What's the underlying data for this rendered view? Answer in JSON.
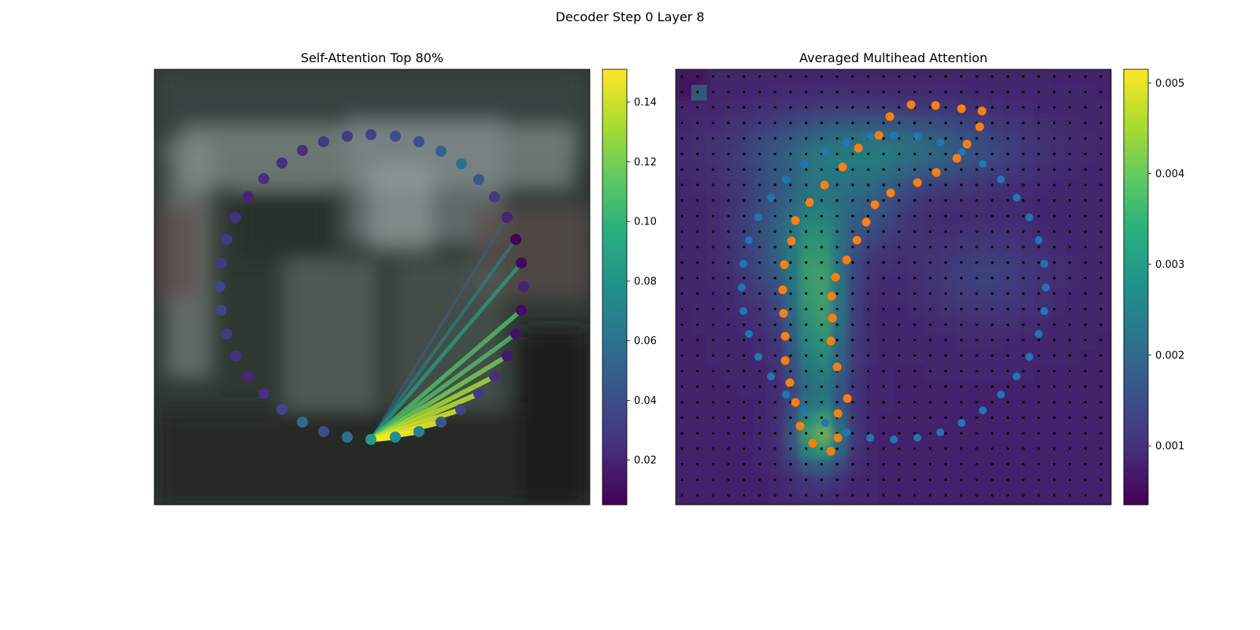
{
  "figure": {
    "title": "Decoder Step 0 Layer 8"
  },
  "chart_data": [
    {
      "type": "scatter",
      "title": "Self-Attention Top 80%",
      "background": "blurred photo of a vehicle (dark grey/green tones)",
      "colormap": "viridis",
      "colorbar": {
        "min": 0.005,
        "max": 0.151,
        "ticks": [
          0.02,
          0.04,
          0.06,
          0.08,
          0.1,
          0.12,
          0.14
        ],
        "tick_labels": [
          "0.02",
          "0.04",
          "0.06",
          "0.08",
          "0.10",
          "0.12",
          "0.14"
        ]
      },
      "query_index": 0,
      "points": [
        {
          "x": 471,
          "y": 558,
          "v": 0.085
        },
        {
          "x": 502,
          "y": 555,
          "v": 0.075
        },
        {
          "x": 532,
          "y": 548,
          "v": 0.07
        },
        {
          "x": 560,
          "y": 536,
          "v": 0.045
        },
        {
          "x": 585,
          "y": 520,
          "v": 0.035
        },
        {
          "x": 608,
          "y": 500,
          "v": 0.03
        },
        {
          "x": 628,
          "y": 478,
          "v": 0.025
        },
        {
          "x": 644,
          "y": 452,
          "v": 0.015
        },
        {
          "x": 655,
          "y": 424,
          "v": 0.012
        },
        {
          "x": 662,
          "y": 394,
          "v": 0.01
        },
        {
          "x": 665,
          "y": 364,
          "v": 0.02
        },
        {
          "x": 662,
          "y": 334,
          "v": 0.008
        },
        {
          "x": 655,
          "y": 304,
          "v": 0.006
        },
        {
          "x": 644,
          "y": 276,
          "v": 0.02
        },
        {
          "x": 628,
          "y": 250,
          "v": 0.03
        },
        {
          "x": 608,
          "y": 228,
          "v": 0.045
        },
        {
          "x": 586,
          "y": 208,
          "v": 0.06
        },
        {
          "x": 560,
          "y": 192,
          "v": 0.05
        },
        {
          "x": 532,
          "y": 180,
          "v": 0.04
        },
        {
          "x": 502,
          "y": 173,
          "v": 0.04
        },
        {
          "x": 471,
          "y": 171,
          "v": 0.035
        },
        {
          "x": 441,
          "y": 173,
          "v": 0.03
        },
        {
          "x": 411,
          "y": 180,
          "v": 0.03
        },
        {
          "x": 384,
          "y": 191,
          "v": 0.025
        },
        {
          "x": 358,
          "y": 207,
          "v": 0.025
        },
        {
          "x": 335,
          "y": 227,
          "v": 0.025
        },
        {
          "x": 315,
          "y": 250,
          "v": 0.02
        },
        {
          "x": 299,
          "y": 276,
          "v": 0.025
        },
        {
          "x": 288,
          "y": 304,
          "v": 0.03
        },
        {
          "x": 281,
          "y": 334,
          "v": 0.03
        },
        {
          "x": 279,
          "y": 364,
          "v": 0.035
        },
        {
          "x": 281,
          "y": 394,
          "v": 0.035
        },
        {
          "x": 288,
          "y": 424,
          "v": 0.03
        },
        {
          "x": 299,
          "y": 452,
          "v": 0.025
        },
        {
          "x": 315,
          "y": 478,
          "v": 0.02
        },
        {
          "x": 335,
          "y": 500,
          "v": 0.025
        },
        {
          "x": 358,
          "y": 520,
          "v": 0.035
        },
        {
          "x": 384,
          "y": 536,
          "v": 0.055
        },
        {
          "x": 411,
          "y": 548,
          "v": 0.04
        },
        {
          "x": 441,
          "y": 555,
          "v": 0.06
        }
      ],
      "lines": [
        {
          "to": 1,
          "v": 0.15
        },
        {
          "to": 2,
          "v": 0.148
        },
        {
          "to": 3,
          "v": 0.145
        },
        {
          "to": 4,
          "v": 0.14
        },
        {
          "to": 5,
          "v": 0.135
        },
        {
          "to": 6,
          "v": 0.13
        },
        {
          "to": 7,
          "v": 0.12
        },
        {
          "to": 8,
          "v": 0.11
        },
        {
          "to": 9,
          "v": 0.11
        },
        {
          "to": 11,
          "v": 0.09
        },
        {
          "to": 12,
          "v": 0.07
        },
        {
          "to": 13,
          "v": 0.05
        }
      ]
    },
    {
      "type": "heatmap",
      "title": "Averaged Multihead Attention",
      "colormap": "viridis",
      "colorbar": {
        "min": 0.00035,
        "max": 0.00515,
        "ticks": [
          0.001,
          0.002,
          0.003,
          0.004,
          0.005
        ],
        "tick_labels": [
          "0.001",
          "0.002",
          "0.003",
          "0.004",
          "0.005"
        ]
      },
      "grid": "28x28 black reference points",
      "blue_points": [
        {
          "x": 1135,
          "y": 172
        },
        {
          "x": 1165,
          "y": 173
        },
        {
          "x": 1194,
          "y": 181
        },
        {
          "x": 1221,
          "y": 193
        },
        {
          "x": 1248,
          "y": 208
        },
        {
          "x": 1271,
          "y": 228
        },
        {
          "x": 1291,
          "y": 251
        },
        {
          "x": 1307,
          "y": 276
        },
        {
          "x": 1319,
          "y": 305
        },
        {
          "x": 1326,
          "y": 335
        },
        {
          "x": 1328,
          "y": 365
        },
        {
          "x": 1326,
          "y": 395
        },
        {
          "x": 1319,
          "y": 424
        },
        {
          "x": 1307,
          "y": 453
        },
        {
          "x": 1291,
          "y": 478
        },
        {
          "x": 1271,
          "y": 501
        },
        {
          "x": 1248,
          "y": 521
        },
        {
          "x": 1221,
          "y": 537
        },
        {
          "x": 1194,
          "y": 549
        },
        {
          "x": 1165,
          "y": 556
        },
        {
          "x": 1135,
          "y": 558
        },
        {
          "x": 1105,
          "y": 556
        },
        {
          "x": 1075,
          "y": 549
        },
        {
          "x": 1048,
          "y": 537
        },
        {
          "x": 1021,
          "y": 521
        },
        {
          "x": 998,
          "y": 501
        },
        {
          "x": 979,
          "y": 478
        },
        {
          "x": 963,
          "y": 453
        },
        {
          "x": 951,
          "y": 424
        },
        {
          "x": 944,
          "y": 395
        },
        {
          "x": 942,
          "y": 365
        },
        {
          "x": 944,
          "y": 335
        },
        {
          "x": 951,
          "y": 305
        },
        {
          "x": 963,
          "y": 276
        },
        {
          "x": 979,
          "y": 251
        },
        {
          "x": 998,
          "y": 228
        },
        {
          "x": 1021,
          "y": 208
        },
        {
          "x": 1048,
          "y": 193
        },
        {
          "x": 1075,
          "y": 181
        },
        {
          "x": 1105,
          "y": 173
        }
      ],
      "orange_points": [
        {
          "x": 1157,
          "y": 133
        },
        {
          "x": 1188,
          "y": 134
        },
        {
          "x": 1221,
          "y": 138
        },
        {
          "x": 1247,
          "y": 141
        },
        {
          "x": 1244,
          "y": 161
        },
        {
          "x": 1228,
          "y": 183
        },
        {
          "x": 1215,
          "y": 201
        },
        {
          "x": 1189,
          "y": 219
        },
        {
          "x": 1165,
          "y": 232
        },
        {
          "x": 1131,
          "y": 245
        },
        {
          "x": 1111,
          "y": 260
        },
        {
          "x": 1100,
          "y": 282
        },
        {
          "x": 1088,
          "y": 305
        },
        {
          "x": 1075,
          "y": 330
        },
        {
          "x": 1061,
          "y": 352
        },
        {
          "x": 1056,
          "y": 376
        },
        {
          "x": 1057,
          "y": 404
        },
        {
          "x": 1055,
          "y": 433
        },
        {
          "x": 1063,
          "y": 466
        },
        {
          "x": 1076,
          "y": 506
        },
        {
          "x": 1064,
          "y": 525
        },
        {
          "x": 1064,
          "y": 556
        },
        {
          "x": 1055,
          "y": 573
        },
        {
          "x": 1032,
          "y": 563
        },
        {
          "x": 1016,
          "y": 541
        },
        {
          "x": 1010,
          "y": 511
        },
        {
          "x": 1003,
          "y": 486
        },
        {
          "x": 997,
          "y": 458
        },
        {
          "x": 997,
          "y": 427
        },
        {
          "x": 995,
          "y": 398
        },
        {
          "x": 994,
          "y": 368
        },
        {
          "x": 996,
          "y": 336
        },
        {
          "x": 1005,
          "y": 306
        },
        {
          "x": 1010,
          "y": 280
        },
        {
          "x": 1028,
          "y": 257
        },
        {
          "x": 1047,
          "y": 235
        },
        {
          "x": 1070,
          "y": 212
        },
        {
          "x": 1090,
          "y": 188
        },
        {
          "x": 1116,
          "y": 172
        },
        {
          "x": 1130,
          "y": 148
        }
      ]
    }
  ]
}
